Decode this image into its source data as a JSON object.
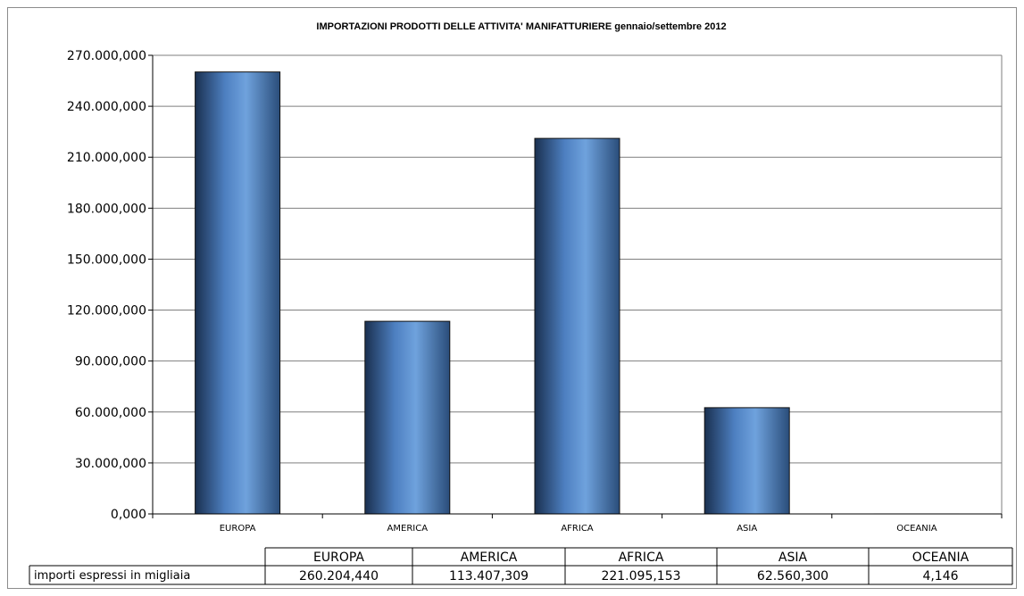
{
  "chart_data": {
    "type": "bar",
    "title": "IMPORTAZIONI  PRODOTTI DELLE ATTIVITA' MANIFATTURIERE  gennaio/settembre 2012",
    "categories": [
      "EUROPA",
      "AMERICA",
      "AFRICA",
      "ASIA",
      "OCEANIA"
    ],
    "series": [
      {
        "name": "importi espressi in migliaia",
        "values": [
          260204.44,
          113407.309,
          221095.153,
          62560.3,
          4.146
        ]
      }
    ],
    "ylim": [
      0,
      270000
    ],
    "yticks": [
      0,
      30000,
      60000,
      90000,
      120000,
      150000,
      180000,
      210000,
      240000,
      270000
    ],
    "ytick_labels": [
      "0,000",
      "30.000,000",
      "60.000,000",
      "90.000,000",
      "120.000,000",
      "150.000,000",
      "180.000,000",
      "210.000,000",
      "240.000,000",
      "270.000,000"
    ],
    "grid": true,
    "data_table": {
      "row_header": "importi espressi in migliaia",
      "values": [
        "260.204,440",
        "113.407,309",
        "221.095,153",
        "62.560,300",
        "4,146"
      ]
    },
    "colors": {
      "bar_dark": "#1f3a5c",
      "bar_light": "#6fa2dd",
      "grid": "#7f7f7f"
    }
  }
}
